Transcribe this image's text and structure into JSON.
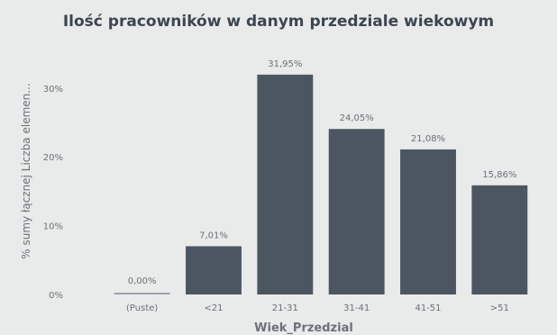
{
  "chart_data": {
    "type": "bar",
    "title": "Ilość pracowników w danym przedziale wiekowym",
    "xlabel": "Wiek_Przedzial",
    "ylabel": "% sumy łącznej Liczba elemen...",
    "categories": [
      "(Puste)",
      "<21",
      "21-31",
      "31-41",
      "41-51",
      ">51"
    ],
    "values": [
      0.0,
      7.01,
      31.95,
      24.05,
      21.08,
      15.86
    ],
    "data_labels": [
      "0,00%",
      "7,01%",
      "31,95%",
      "24,05%",
      "21,08%",
      "15,86%"
    ],
    "y_ticks": [
      0,
      10,
      20,
      30
    ],
    "y_tick_labels": [
      "0%",
      "10%",
      "20%",
      "30%"
    ],
    "ylim": [
      0,
      35.6
    ],
    "grid": false,
    "bar_color": "#4b5661",
    "zero_bar_color": "#9aa3ab",
    "background": "#e9eaea",
    "text_color": "#6b7178",
    "title_color": "#3c4650"
  }
}
